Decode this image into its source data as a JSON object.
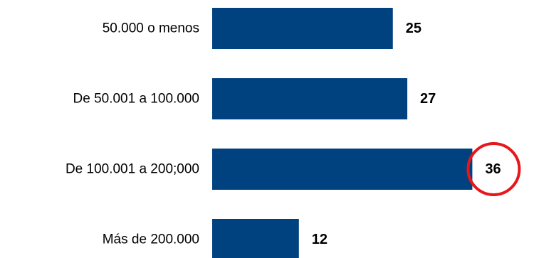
{
  "chart_data": {
    "type": "bar",
    "orientation": "horizontal",
    "categories": [
      "50.000 o menos",
      "De 50.001 a 100.000",
      "De 100.001 a 200;000",
      "Más de 200.000"
    ],
    "values": [
      25,
      27,
      36,
      12
    ],
    "bar_color": "#00417F",
    "highlight": {
      "index": 2,
      "style": "circle",
      "color": "#E8161B"
    },
    "xlim": [
      0,
      37
    ],
    "grid": false,
    "legend": "none"
  }
}
